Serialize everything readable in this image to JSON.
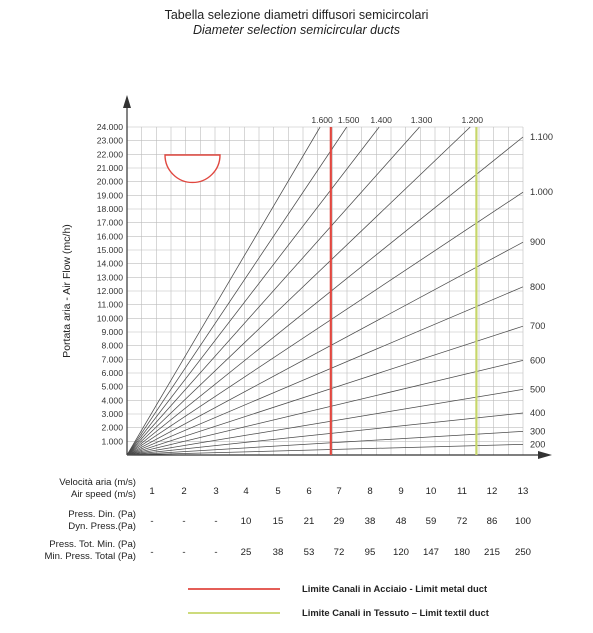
{
  "header": {
    "title": "Tabella selezione diametri diffusori semicircolari",
    "subtitle": "Diameter selection semicircular ducts"
  },
  "colors": {
    "steel": "#e0473f",
    "textile": "#c6d66a",
    "grid": "#bdbdbd",
    "diagonal": "#4a4a4a",
    "half_circle": "#e0473f"
  },
  "chart_data": {
    "type": "line",
    "title": "Tabella selezione diametri diffusori semicircolari",
    "subtitle": "Diameter selection semicircular ducts",
    "ylabel": "Portata aria - Air Flow  (mc/h)",
    "xlabel": "Velocità aria (m/s) / Air speed (m/s)",
    "xlim": [
      0,
      13.6
    ],
    "ylim": [
      0,
      24000
    ],
    "grid": true,
    "y_ticks": [
      "1.000",
      "2.000",
      "3.000",
      "4.000",
      "5.000",
      "6.000",
      "7.000",
      "8.000",
      "9.000",
      "10.000",
      "11.000",
      "12.000",
      "13.000",
      "14.000",
      "15.000",
      "16.000",
      "17.000",
      "18.000",
      "19.000",
      "20.000",
      "21.000",
      "22.000",
      "23.000",
      "24.000"
    ],
    "diameter_series": [
      {
        "name": "1.600",
        "k": 3619
      },
      {
        "name": "1.500",
        "k": 3181
      },
      {
        "name": "1.400",
        "k": 2771
      },
      {
        "name": "1.300",
        "k": 2389
      },
      {
        "name": "1.200",
        "k": 2036
      },
      {
        "name": "1.100",
        "k": 1711
      },
      {
        "name": "1.000",
        "k": 1414
      },
      {
        "name": "900",
        "k": 1145
      },
      {
        "name": "800",
        "k": 905
      },
      {
        "name": "700",
        "k": 693
      },
      {
        "name": "600",
        "k": 509
      },
      {
        "name": "500",
        "k": 353
      },
      {
        "name": "400",
        "k": 226
      },
      {
        "name": "300",
        "k": 127
      },
      {
        "name": "200",
        "k": 57
      }
    ],
    "labeled_series_top": [
      "1.600",
      "1.500",
      "1.400",
      "1.300",
      "1.200"
    ],
    "labeled_series_right": [
      "1.100",
      "1.000",
      "900",
      "800",
      "700",
      "600",
      "500",
      "400",
      "300",
      "200"
    ],
    "limits": [
      {
        "name": "Limite Canali in Acciaio - Limit metal duct",
        "x": 7,
        "color": "#e0473f"
      },
      {
        "name": "Limite Canali in Tessuto – Limit textil duct",
        "x": 12,
        "color": "#c6d66a"
      }
    ]
  },
  "table": {
    "rows": [
      {
        "label1": "Velocità aria (m/s)",
        "label2": "Air speed (m/s)",
        "values": [
          "1",
          "2",
          "3",
          "4",
          "5",
          "6",
          "7",
          "8",
          "9",
          "10",
          "11",
          "12",
          "13"
        ]
      },
      {
        "label1": "Press. Din. (Pa)",
        "label2": "Dyn. Press.(Pa)",
        "values": [
          "-",
          "-",
          "-",
          "10",
          "15",
          "21",
          "29",
          "38",
          "48",
          "59",
          "72",
          "86",
          "100"
        ]
      },
      {
        "label1": "Press. Tot. Min.  (Pa)",
        "label2": "Min. Press. Total (Pa)",
        "values": [
          "-",
          "-",
          "-",
          "25",
          "38",
          "53",
          "72",
          "95",
          "120",
          "147",
          "180",
          "215",
          "250"
        ]
      }
    ]
  },
  "legend": [
    {
      "label": "Limite Canali in Acciaio - Limit metal duct",
      "color": "#e0473f"
    },
    {
      "label": "Limite Canali in Tessuto – Limit textil duct",
      "color": "#c6d66a"
    }
  ]
}
